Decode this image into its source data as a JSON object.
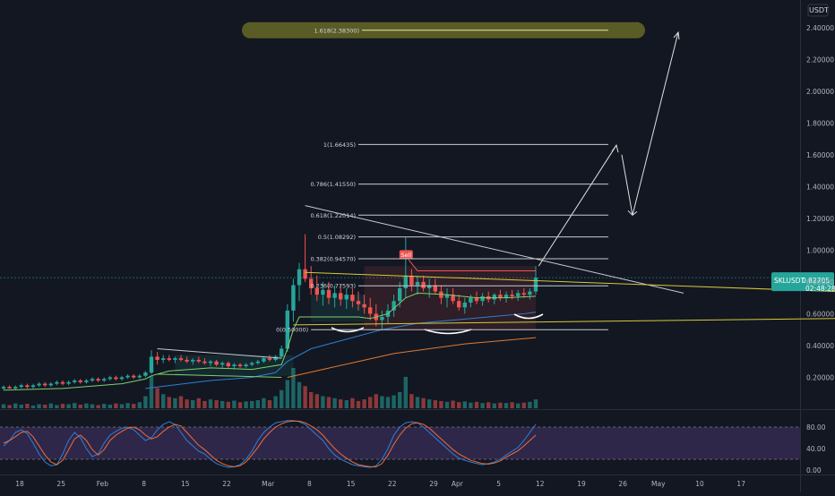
{
  "chart_data": {
    "type": "candlestick",
    "symbol": "SKLUSDT",
    "currency": "USDT",
    "last_price": "0.82705",
    "countdown": "02:48:28",
    "y_axis": {
      "range": [
        0.0,
        2.45
      ],
      "ticks": [
        "2.40000",
        "2.20000",
        "2.00000",
        "1.80000",
        "1.60000",
        "1.40000",
        "1.20000",
        "1.00000",
        "0.80000",
        "0.60000",
        "0.40000",
        "0.20000"
      ],
      "tick_values": [
        2.4,
        2.2,
        2.0,
        1.8,
        1.6,
        1.4,
        1.2,
        1.0,
        0.8,
        0.6,
        0.4,
        0.2
      ]
    },
    "x_axis": {
      "labels": [
        "18",
        "25",
        "Feb",
        "8",
        "15",
        "22",
        "Mar",
        "8",
        "15",
        "22",
        "29",
        "Apr",
        "5",
        "12",
        "19",
        "26",
        "May",
        "10",
        "17"
      ],
      "day_index": [
        0,
        7,
        14,
        21,
        28,
        35,
        42,
        49,
        56,
        63,
        70,
        74,
        81,
        88,
        95,
        102,
        108,
        115,
        122
      ]
    },
    "fib_levels": [
      {
        "label": "1.618(2.38300)",
        "value": 2.383
      },
      {
        "label": "1(1.66435)",
        "value": 1.66435
      },
      {
        "label": "0.786(1.41550)",
        "value": 1.4155
      },
      {
        "label": "0.618(1.22014)",
        "value": 1.22014
      },
      {
        "label": "0.5(1.08292)",
        "value": 1.08292
      },
      {
        "label": "0.382(0.94570)",
        "value": 0.9457
      },
      {
        "label": "0.236(0.77593)",
        "value": 0.77593
      },
      {
        "label": "0(0.50000)",
        "value": 0.5
      }
    ],
    "annotation": "Sell",
    "candles": [
      [
        0,
        0.13,
        0.15,
        0.12,
        0.14
      ],
      [
        1,
        0.14,
        0.15,
        0.13,
        0.13
      ],
      [
        2,
        0.13,
        0.15,
        0.12,
        0.14
      ],
      [
        3,
        0.14,
        0.16,
        0.13,
        0.15
      ],
      [
        4,
        0.15,
        0.16,
        0.13,
        0.14
      ],
      [
        5,
        0.14,
        0.16,
        0.13,
        0.15
      ],
      [
        6,
        0.15,
        0.17,
        0.14,
        0.16
      ],
      [
        7,
        0.16,
        0.17,
        0.14,
        0.15
      ],
      [
        8,
        0.15,
        0.17,
        0.14,
        0.16
      ],
      [
        9,
        0.16,
        0.18,
        0.15,
        0.17
      ],
      [
        10,
        0.17,
        0.18,
        0.15,
        0.16
      ],
      [
        11,
        0.16,
        0.18,
        0.15,
        0.17
      ],
      [
        12,
        0.17,
        0.19,
        0.16,
        0.18
      ],
      [
        13,
        0.18,
        0.19,
        0.16,
        0.17
      ],
      [
        14,
        0.17,
        0.19,
        0.16,
        0.18
      ],
      [
        15,
        0.18,
        0.2,
        0.17,
        0.19
      ],
      [
        16,
        0.19,
        0.2,
        0.17,
        0.18
      ],
      [
        17,
        0.18,
        0.2,
        0.17,
        0.19
      ],
      [
        18,
        0.19,
        0.21,
        0.18,
        0.2
      ],
      [
        19,
        0.2,
        0.21,
        0.18,
        0.19
      ],
      [
        20,
        0.19,
        0.21,
        0.18,
        0.2
      ],
      [
        21,
        0.2,
        0.22,
        0.19,
        0.21
      ],
      [
        22,
        0.21,
        0.22,
        0.19,
        0.2
      ],
      [
        23,
        0.2,
        0.22,
        0.19,
        0.21
      ],
      [
        24,
        0.21,
        0.24,
        0.2,
        0.23
      ],
      [
        25,
        0.23,
        0.37,
        0.22,
        0.33
      ],
      [
        26,
        0.33,
        0.36,
        0.28,
        0.31
      ],
      [
        27,
        0.31,
        0.34,
        0.29,
        0.32
      ],
      [
        28,
        0.32,
        0.34,
        0.3,
        0.31
      ],
      [
        29,
        0.31,
        0.33,
        0.29,
        0.32
      ],
      [
        30,
        0.32,
        0.34,
        0.3,
        0.31
      ],
      [
        31,
        0.31,
        0.33,
        0.29,
        0.3
      ],
      [
        32,
        0.3,
        0.32,
        0.28,
        0.31
      ],
      [
        33,
        0.31,
        0.33,
        0.29,
        0.3
      ],
      [
        34,
        0.3,
        0.32,
        0.28,
        0.29
      ],
      [
        35,
        0.29,
        0.31,
        0.27,
        0.3
      ],
      [
        36,
        0.3,
        0.31,
        0.27,
        0.28
      ],
      [
        37,
        0.28,
        0.3,
        0.26,
        0.29
      ],
      [
        38,
        0.29,
        0.3,
        0.26,
        0.27
      ],
      [
        39,
        0.27,
        0.29,
        0.25,
        0.28
      ],
      [
        40,
        0.28,
        0.29,
        0.26,
        0.27
      ],
      [
        41,
        0.27,
        0.29,
        0.26,
        0.28
      ],
      [
        42,
        0.28,
        0.3,
        0.27,
        0.29
      ],
      [
        43,
        0.29,
        0.31,
        0.28,
        0.3
      ],
      [
        44,
        0.3,
        0.33,
        0.29,
        0.32
      ],
      [
        45,
        0.32,
        0.34,
        0.3,
        0.31
      ],
      [
        46,
        0.31,
        0.34,
        0.3,
        0.33
      ],
      [
        47,
        0.33,
        0.4,
        0.32,
        0.38
      ],
      [
        48,
        0.38,
        0.66,
        0.36,
        0.62
      ],
      [
        49,
        0.62,
        0.82,
        0.55,
        0.78
      ],
      [
        50,
        0.78,
        0.92,
        0.68,
        0.88
      ],
      [
        51,
        0.88,
        1.1,
        0.8,
        0.82
      ],
      [
        52,
        0.82,
        0.9,
        0.72,
        0.76
      ],
      [
        53,
        0.76,
        0.84,
        0.68,
        0.72
      ],
      [
        54,
        0.72,
        0.8,
        0.65,
        0.75
      ],
      [
        55,
        0.75,
        0.8,
        0.66,
        0.7
      ],
      [
        56,
        0.7,
        0.78,
        0.64,
        0.73
      ],
      [
        57,
        0.73,
        0.78,
        0.65,
        0.69
      ],
      [
        58,
        0.69,
        0.76,
        0.63,
        0.72
      ],
      [
        59,
        0.72,
        0.76,
        0.64,
        0.68
      ],
      [
        60,
        0.68,
        0.74,
        0.62,
        0.66
      ],
      [
        61,
        0.66,
        0.72,
        0.6,
        0.64
      ],
      [
        62,
        0.64,
        0.7,
        0.56,
        0.6
      ],
      [
        63,
        0.6,
        0.66,
        0.52,
        0.56
      ],
      [
        64,
        0.56,
        0.62,
        0.5,
        0.58
      ],
      [
        65,
        0.58,
        0.66,
        0.54,
        0.62
      ],
      [
        66,
        0.62,
        0.72,
        0.58,
        0.68
      ],
      [
        67,
        0.68,
        0.8,
        0.64,
        0.76
      ],
      [
        68,
        0.76,
        1.08,
        0.7,
        0.84
      ],
      [
        69,
        0.84,
        0.88,
        0.74,
        0.78
      ],
      [
        70,
        0.78,
        0.84,
        0.72,
        0.8
      ],
      [
        71,
        0.8,
        0.84,
        0.74,
        0.76
      ],
      [
        72,
        0.76,
        0.82,
        0.7,
        0.78
      ],
      [
        73,
        0.78,
        0.82,
        0.72,
        0.74
      ],
      [
        74,
        0.74,
        0.78,
        0.66,
        0.7
      ],
      [
        75,
        0.7,
        0.76,
        0.64,
        0.72
      ],
      [
        76,
        0.72,
        0.76,
        0.66,
        0.68
      ],
      [
        77,
        0.68,
        0.72,
        0.62,
        0.64
      ],
      [
        78,
        0.64,
        0.7,
        0.6,
        0.67
      ],
      [
        79,
        0.67,
        0.72,
        0.64,
        0.7
      ],
      [
        80,
        0.7,
        0.74,
        0.66,
        0.68
      ],
      [
        81,
        0.68,
        0.73,
        0.65,
        0.71
      ],
      [
        82,
        0.71,
        0.74,
        0.67,
        0.69
      ],
      [
        83,
        0.69,
        0.73,
        0.66,
        0.72
      ],
      [
        84,
        0.72,
        0.75,
        0.68,
        0.7
      ],
      [
        85,
        0.7,
        0.74,
        0.67,
        0.72
      ],
      [
        86,
        0.72,
        0.75,
        0.69,
        0.71
      ],
      [
        87,
        0.71,
        0.75,
        0.68,
        0.73
      ],
      [
        88,
        0.73,
        0.76,
        0.7,
        0.72
      ],
      [
        89,
        0.72,
        0.76,
        0.69,
        0.74
      ],
      [
        90,
        0.74,
        0.9,
        0.72,
        0.827
      ]
    ],
    "volume": [
      0.1,
      0.08,
      0.12,
      0.09,
      0.11,
      0.07,
      0.1,
      0.09,
      0.12,
      0.08,
      0.11,
      0.1,
      0.13,
      0.09,
      0.12,
      0.1,
      0.08,
      0.11,
      0.09,
      0.12,
      0.1,
      0.13,
      0.11,
      0.15,
      0.3,
      0.8,
      0.5,
      0.35,
      0.28,
      0.25,
      0.3,
      0.22,
      0.2,
      0.25,
      0.18,
      0.22,
      0.2,
      0.18,
      0.16,
      0.19,
      0.15,
      0.17,
      0.18,
      0.2,
      0.25,
      0.2,
      0.3,
      0.45,
      0.7,
      1.0,
      0.65,
      0.55,
      0.4,
      0.35,
      0.3,
      0.28,
      0.25,
      0.22,
      0.2,
      0.25,
      0.18,
      0.22,
      0.28,
      0.35,
      0.3,
      0.28,
      0.32,
      0.4,
      0.78,
      0.35,
      0.28,
      0.25,
      0.22,
      0.2,
      0.18,
      0.16,
      0.19,
      0.15,
      0.17,
      0.14,
      0.16,
      0.13,
      0.15,
      0.12,
      0.14,
      0.13,
      0.15,
      0.12,
      0.14,
      0.16,
      0.22
    ],
    "ma_green": [
      [
        0,
        0.12
      ],
      [
        10,
        0.13
      ],
      [
        20,
        0.16
      ],
      [
        24,
        0.19
      ],
      [
        25,
        0.21
      ],
      [
        28,
        0.24
      ],
      [
        35,
        0.26
      ],
      [
        42,
        0.25
      ],
      [
        47,
        0.28
      ],
      [
        48,
        0.38
      ],
      [
        49,
        0.5
      ],
      [
        50,
        0.58
      ],
      [
        55,
        0.58
      ],
      [
        60,
        0.58
      ],
      [
        62,
        0.57
      ],
      [
        65,
        0.6
      ],
      [
        68,
        0.7
      ],
      [
        70,
        0.73
      ],
      [
        75,
        0.72
      ],
      [
        80,
        0.7
      ],
      [
        85,
        0.7
      ],
      [
        90,
        0.71
      ]
    ],
    "ma_blue": [
      [
        24,
        0.13
      ],
      [
        35,
        0.18
      ],
      [
        42,
        0.2
      ],
      [
        46,
        0.23
      ],
      [
        48,
        0.3
      ],
      [
        52,
        0.38
      ],
      [
        58,
        0.44
      ],
      [
        64,
        0.5
      ],
      [
        70,
        0.54
      ],
      [
        76,
        0.56
      ],
      [
        82,
        0.58
      ],
      [
        88,
        0.6
      ],
      [
        90,
        0.61
      ]
    ],
    "ma_orange": [
      [
        48,
        0.2
      ],
      [
        54,
        0.25
      ],
      [
        60,
        0.3
      ],
      [
        66,
        0.35
      ],
      [
        72,
        0.38
      ],
      [
        78,
        0.41
      ],
      [
        84,
        0.43
      ],
      [
        90,
        0.45
      ]
    ],
    "stoch_rsi": {
      "range": [
        0,
        100
      ],
      "ticks": [
        "80.00",
        "40.00",
        "0.00"
      ],
      "tick_values": [
        80,
        40,
        0
      ],
      "k": [
        45,
        55,
        70,
        75,
        68,
        50,
        30,
        15,
        8,
        10,
        30,
        55,
        70,
        60,
        40,
        25,
        30,
        50,
        65,
        72,
        78,
        80,
        75,
        65,
        55,
        60,
        75,
        85,
        90,
        85,
        70,
        55,
        45,
        35,
        30,
        20,
        12,
        8,
        5,
        6,
        10,
        20,
        35,
        55,
        70,
        80,
        88,
        90,
        92,
        92,
        90,
        85,
        75,
        65,
        55,
        40,
        28,
        20,
        15,
        10,
        8,
        6,
        5,
        8,
        20,
        40,
        65,
        80,
        88,
        90,
        88,
        80,
        70,
        60,
        50,
        40,
        30,
        22,
        18,
        15,
        12,
        10,
        12,
        15,
        20,
        28,
        35,
        42,
        55,
        70,
        85
      ],
      "d": [
        50,
        55,
        62,
        70,
        72,
        62,
        45,
        28,
        15,
        10,
        18,
        38,
        58,
        65,
        55,
        38,
        28,
        38,
        55,
        65,
        72,
        78,
        80,
        75,
        65,
        58,
        62,
        72,
        80,
        85,
        82,
        70,
        58,
        46,
        38,
        28,
        18,
        12,
        8,
        6,
        8,
        15,
        28,
        42,
        58,
        70,
        80,
        86,
        90,
        91,
        91,
        88,
        82,
        75,
        65,
        52,
        40,
        30,
        22,
        15,
        10,
        8,
        6,
        6,
        12,
        28,
        48,
        65,
        78,
        86,
        88,
        85,
        78,
        68,
        58,
        48,
        38,
        30,
        24,
        18,
        15,
        12,
        11,
        13,
        17,
        24,
        30,
        36,
        45,
        55,
        65
      ]
    }
  }
}
